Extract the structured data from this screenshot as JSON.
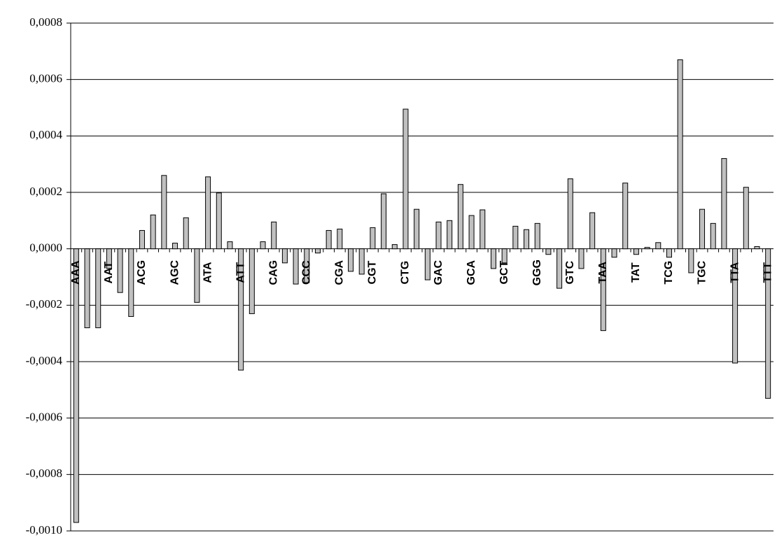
{
  "chart_data": {
    "type": "bar",
    "categories": [
      "AAA",
      null,
      null,
      "AAT",
      null,
      null,
      "ACG",
      null,
      null,
      "AGC",
      null,
      null,
      "ATA",
      null,
      null,
      "ATT",
      null,
      null,
      "CAG",
      null,
      null,
      "CCC",
      null,
      null,
      "CGA",
      null,
      null,
      "CGT",
      null,
      null,
      "CTG",
      null,
      null,
      "GAC",
      null,
      null,
      "GCA",
      null,
      null,
      "GCT",
      null,
      null,
      "GGG",
      null,
      null,
      "GTC",
      null,
      null,
      "TAA",
      null,
      null,
      "TAT",
      null,
      null,
      "TCG",
      null,
      null,
      "TGC",
      null,
      null,
      "TTA",
      null,
      null,
      "TTT"
    ],
    "values": [
      -0.00097,
      -0.00028,
      -0.00028,
      -7e-05,
      -0.000155,
      -0.00024,
      6.5e-05,
      0.00012,
      0.00026,
      2e-05,
      0.00011,
      -0.00019,
      0.000255,
      0.000198,
      2.5e-05,
      -0.00043,
      -0.00023,
      2.5e-05,
      9.5e-05,
      -5e-05,
      -0.000125,
      -0.00012,
      -1.5e-05,
      6.5e-05,
      7e-05,
      -8e-05,
      -9e-05,
      7.5e-05,
      0.000195,
      1.5e-05,
      0.000495,
      0.00014,
      -0.00011,
      9.5e-05,
      0.0001,
      0.000228,
      0.000118,
      0.000138,
      -7e-05,
      -5e-05,
      8e-05,
      6.8e-05,
      9e-05,
      -2e-05,
      -0.00014,
      0.000248,
      -7e-05,
      0.000128,
      -0.00029,
      -3e-05,
      0.000233,
      -2e-05,
      5e-06,
      2.2e-05,
      -3e-05,
      0.00067,
      -8.5e-05,
      0.00014,
      9e-05,
      0.00032,
      -0.000405,
      0.000218,
      8e-06,
      -0.00053
    ],
    "color": "#c0c0c0",
    "ylim": [
      -0.001,
      0.0008
    ],
    "yticks": [
      {
        "value": -0.001,
        "label": "-0,0010"
      },
      {
        "value": -0.0008,
        "label": "-0,0008"
      },
      {
        "value": -0.0006,
        "label": "-0,0006"
      },
      {
        "value": -0.0004,
        "label": "-0,0004"
      },
      {
        "value": -0.0002,
        "label": "-0,0002"
      },
      {
        "value": 0,
        "label": "0,0000"
      },
      {
        "value": 0.0002,
        "label": "0,0002"
      },
      {
        "value": 0.0004,
        "label": "0,0004"
      },
      {
        "value": 0.0006,
        "label": "0,0006"
      },
      {
        "value": 0.0008,
        "label": "0,0008"
      }
    ],
    "grid": true
  }
}
